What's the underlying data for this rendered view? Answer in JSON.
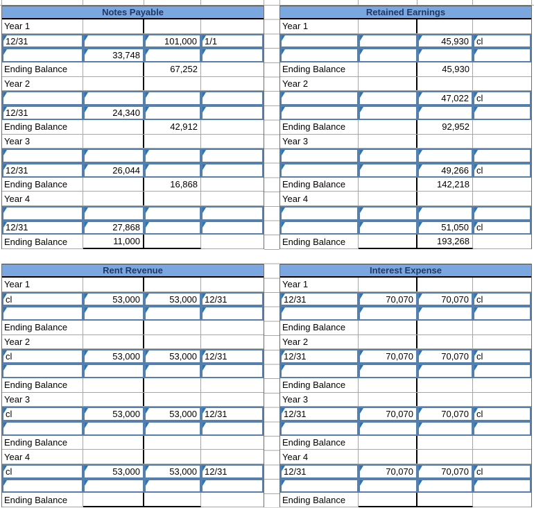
{
  "sheet": {
    "colors": {
      "header_fill": "#7AA7DF",
      "header_text": "#1F3864",
      "input_border": "#5580AE",
      "marker": "#2E75B6",
      "gridline": "#A6A6A6",
      "outer_border": "#6E6E6E",
      "divider": "#000000"
    }
  },
  "accounts": [
    {
      "id": "notes-payable",
      "title": "Notes Payable",
      "years": [
        {
          "label": "Year 1",
          "input_rows": [
            [
              "12/31",
              "",
              "101,000",
              "1/1"
            ],
            [
              "",
              "33,748",
              "",
              ""
            ]
          ],
          "ending": {
            "label": "Ending Balance",
            "debit": "",
            "credit": "67,252",
            "underline": false
          }
        },
        {
          "label": "Year 2",
          "input_rows": [
            [
              "",
              "",
              "",
              ""
            ],
            [
              "12/31",
              "24,340",
              "",
              ""
            ]
          ],
          "ending": {
            "label": "Ending Balance",
            "debit": "",
            "credit": "42,912",
            "underline": false
          }
        },
        {
          "label": "Year 3",
          "input_rows": [
            [
              "",
              "",
              "",
              ""
            ],
            [
              "12/31",
              "26,044",
              "",
              ""
            ]
          ],
          "ending": {
            "label": "Ending Balance",
            "debit": "",
            "credit": "16,868",
            "underline": false
          }
        },
        {
          "label": "Year 4",
          "input_rows": [
            [
              "",
              "",
              "",
              ""
            ],
            [
              "12/31",
              "27,868",
              "",
              ""
            ]
          ],
          "ending": {
            "label": "Ending Balance",
            "debit": "11,000",
            "credit": "",
            "underline": true
          }
        }
      ]
    },
    {
      "id": "retained-earnings",
      "title": "Retained Earnings",
      "years": [
        {
          "label": "Year 1",
          "input_rows": [
            [
              "",
              "",
              "45,930",
              "cl"
            ],
            [
              "",
              "",
              "",
              ""
            ]
          ],
          "ending": {
            "label": "Ending Balance",
            "debit": "",
            "credit": "45,930",
            "underline": false
          }
        },
        {
          "label": "Year 2",
          "input_rows": [
            [
              "",
              "",
              "47,022",
              "cl"
            ],
            [
              "",
              "",
              "",
              ""
            ]
          ],
          "ending": {
            "label": "Ending Balance",
            "debit": "",
            "credit": "92,952",
            "underline": false
          }
        },
        {
          "label": "Year 3",
          "input_rows": [
            [
              "",
              "",
              "",
              ""
            ],
            [
              "",
              "",
              "49,266",
              "cl"
            ]
          ],
          "ending": {
            "label": "Ending Balance",
            "debit": "",
            "credit": "142,218",
            "underline": false
          }
        },
        {
          "label": "Year 4",
          "input_rows": [
            [
              "",
              "",
              "",
              ""
            ],
            [
              "",
              "",
              "51,050",
              "cl"
            ]
          ],
          "ending": {
            "label": "Ending Balance",
            "debit": "",
            "credit": "193,268",
            "underline": true
          }
        }
      ]
    },
    {
      "id": "rent-revenue",
      "title": "Rent Revenue",
      "years": [
        {
          "label": "Year 1",
          "input_rows": [
            [
              "cl",
              "53,000",
              "53,000",
              "12/31"
            ],
            [
              "",
              "",
              "",
              ""
            ]
          ],
          "ending": {
            "label": "Ending Balance",
            "debit": "",
            "credit": "",
            "underline": false
          }
        },
        {
          "label": "Year 2",
          "input_rows": [
            [
              "cl",
              "53,000",
              "53,000",
              "12/31"
            ],
            [
              "",
              "",
              "",
              ""
            ]
          ],
          "ending": {
            "label": "Ending Balance",
            "debit": "",
            "credit": "",
            "underline": false
          }
        },
        {
          "label": "Year 3",
          "input_rows": [
            [
              "cl",
              "53,000",
              "53,000",
              "12/31"
            ],
            [
              "",
              "",
              "",
              ""
            ]
          ],
          "ending": {
            "label": "Ending Balance",
            "debit": "",
            "credit": "",
            "underline": false
          }
        },
        {
          "label": "Year 4",
          "input_rows": [
            [
              "cl",
              "53,000",
              "53,000",
              "12/31"
            ],
            [
              "",
              "",
              "",
              ""
            ]
          ],
          "ending": {
            "label": "Ending Balance",
            "debit": "",
            "credit": "",
            "underline": true
          }
        }
      ]
    },
    {
      "id": "interest-expense",
      "title": "Interest Expense",
      "years": [
        {
          "label": "Year 1",
          "input_rows": [
            [
              "12/31",
              "70,070",
              "70,070",
              "cl"
            ],
            [
              "",
              "",
              "",
              ""
            ]
          ],
          "ending": {
            "label": "Ending Balance",
            "debit": "",
            "credit": "",
            "underline": false
          }
        },
        {
          "label": "Year 2",
          "input_rows": [
            [
              "12/31",
              "70,070",
              "70,070",
              "cl"
            ],
            [
              "",
              "",
              "",
              ""
            ]
          ],
          "ending": {
            "label": "Ending Balance",
            "debit": "",
            "credit": "",
            "underline": false
          }
        },
        {
          "label": "Year 3",
          "input_rows": [
            [
              "12/31",
              "70,070",
              "70,070",
              "cl"
            ],
            [
              "",
              "",
              "",
              ""
            ]
          ],
          "ending": {
            "label": "Ending Balance",
            "debit": "",
            "credit": "",
            "underline": false
          }
        },
        {
          "label": "Year 4",
          "input_rows": [
            [
              "12/31",
              "70,070",
              "70,070",
              "cl"
            ],
            [
              "",
              "",
              "",
              ""
            ]
          ],
          "ending": {
            "label": "Ending Balance",
            "debit": "",
            "credit": "",
            "underline": true
          }
        }
      ]
    }
  ]
}
